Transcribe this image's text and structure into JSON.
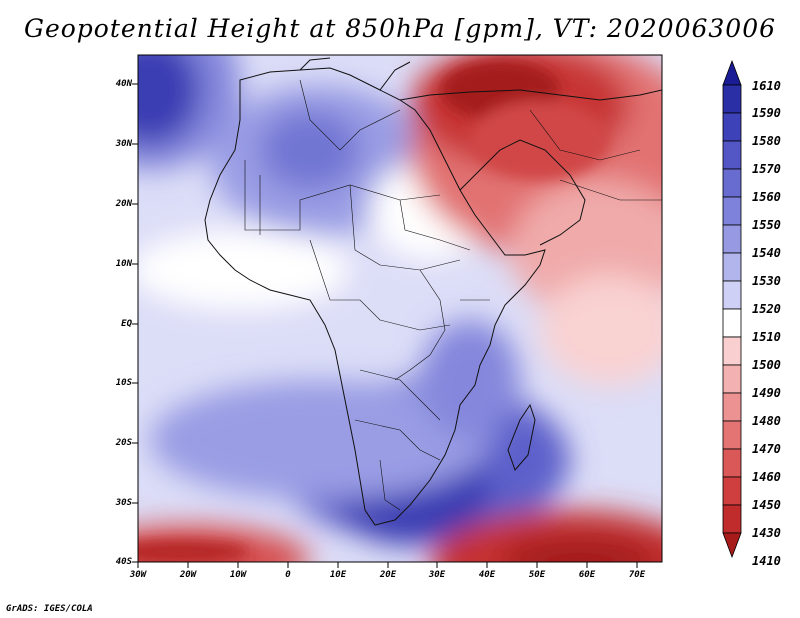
{
  "title": "Geopotential Height at 850hPa [gpm], VT: 2020063006",
  "credit": "GrADS: IGES/COLA",
  "map": {
    "variable": "Geopotential Height at 850hPa",
    "units": "gpm",
    "valid_time": "2020063006",
    "lat_labels": [
      "40N",
      "30N",
      "20N",
      "10N",
      "EQ",
      "10S",
      "20S",
      "30S",
      "40S"
    ],
    "lon_labels": [
      "30W",
      "20W",
      "10W",
      "0",
      "10E",
      "20E",
      "30E",
      "40E",
      "50E",
      "60E",
      "70E"
    ]
  },
  "colorbar": {
    "levels": [
      "1610",
      "1590",
      "1580",
      "1570",
      "1560",
      "1550",
      "1540",
      "1530",
      "1520",
      "1510",
      "1500",
      "1490",
      "1480",
      "1470",
      "1460",
      "1450",
      "1430",
      "1410"
    ],
    "colors": [
      "#1a1c95",
      "#2b2fa6",
      "#3e42b8",
      "#5357c6",
      "#686cd0",
      "#7e82da",
      "#979ae3",
      "#b2b4ec",
      "#cfd0f5",
      "#ffffff",
      "#f9cfcf",
      "#f3b1b1",
      "#ec9292",
      "#e47474",
      "#da5858",
      "#cf3f3f",
      "#c02b2b",
      "#a81b1b"
    ]
  },
  "colors": {
    "background": "#ffffff",
    "ocean_low": "#dcddf7",
    "coastline": "#111111"
  }
}
